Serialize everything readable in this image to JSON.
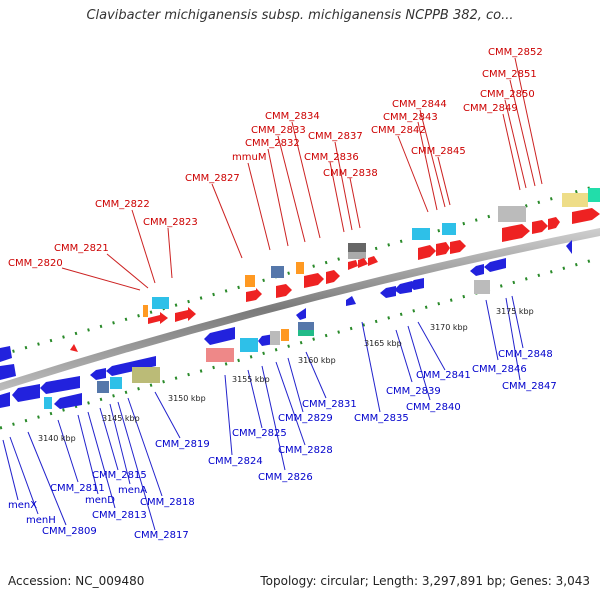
{
  "title": "Clavibacter michiganensis subsp. michiganensis NCPPB 382, co...",
  "footer": {
    "accession": "Accession: NC_009480",
    "topology": "Topology: circular; Length: 3,297,891 bp; Genes: 3,043"
  },
  "colors": {
    "forward_label": "#cc0000",
    "reverse_label": "#0000cc",
    "backbone": "#888888",
    "tick": "#228822"
  },
  "kbp_ticks": [
    "3140 kbp",
    "3145 kbp",
    "3150 kbp",
    "3155 kbp",
    "3160 kbp",
    "3165 kbp",
    "3170 kbp",
    "3175 kbp"
  ],
  "forward_genes": [
    "CMM_2820",
    "CMM_2821",
    "CMM_2822",
    "CMM_2823",
    "CMM_2827",
    "mmuM",
    "CMM_2832",
    "CMM_2833",
    "CMM_2834",
    "CMM_2836",
    "CMM_2837",
    "CMM_2838",
    "CMM_2842",
    "CMM_2843",
    "CMM_2844",
    "CMM_2845",
    "CMM_2849",
    "CMM_2850",
    "CMM_2851",
    "CMM_2852"
  ],
  "reverse_genes": [
    "menX",
    "menH",
    "CMM_2809",
    "CMM_2811",
    "menD",
    "CMM_2813",
    "CMM_2815",
    "menA",
    "CMM_2817",
    "CMM_2818",
    "CMM_2819",
    "CMM_2824",
    "CMM_2825",
    "CMM_2826",
    "CMM_2828",
    "CMM_2829",
    "CMM_2831",
    "CMM_2835",
    "CMM_2839",
    "CMM_2840",
    "CMM_2841",
    "CMM_2846",
    "CMM_2847",
    "CMM_2848"
  ]
}
